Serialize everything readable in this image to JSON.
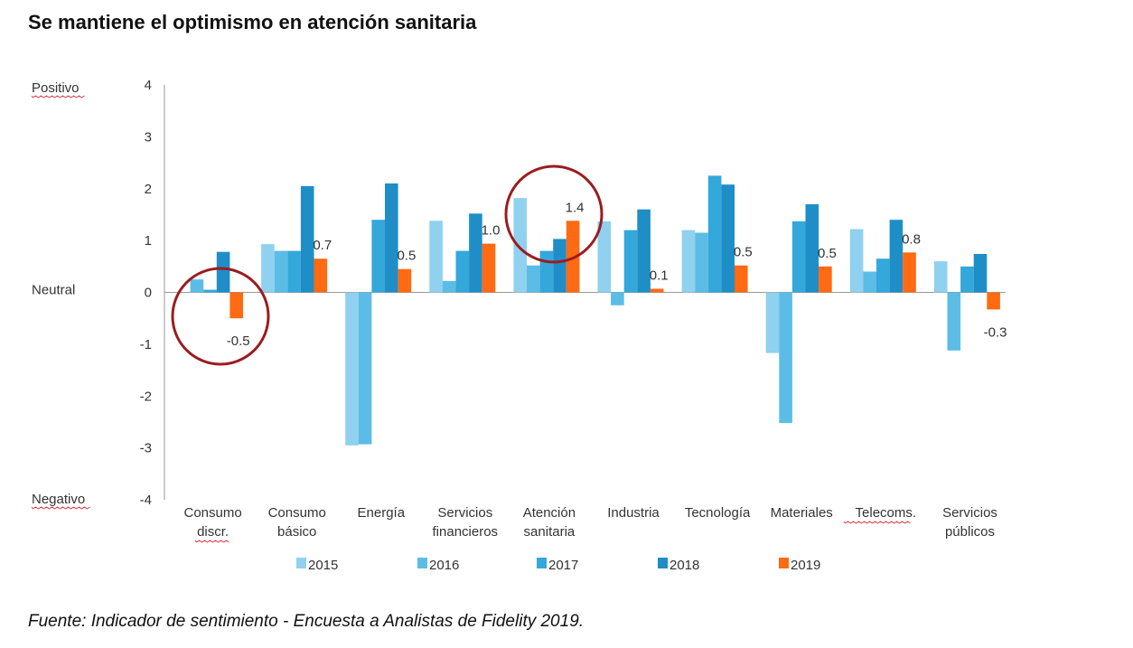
{
  "title": "Se mantiene el optimismo en atención sanitaria",
  "footnote": "Fuente: Indicador de sentimiento - Encuesta a Analistas de Fidelity 2019.",
  "chart_data": {
    "type": "bar",
    "title": "Se mantiene el optimismo en atención sanitaria",
    "xlabel": "",
    "ylabel": "",
    "ylim": [
      -4,
      4
    ],
    "yticks": [
      4,
      3,
      2,
      1,
      0,
      -1,
      -2,
      -3,
      -4
    ],
    "side_labels": {
      "top": "Positivo",
      "middle": "Neutral",
      "bottom": "Negativo"
    },
    "categories": [
      [
        "Consumo",
        "discr."
      ],
      [
        "Consumo",
        "básico"
      ],
      [
        "Energía"
      ],
      [
        "Servicios",
        "financieros"
      ],
      [
        "Atención",
        "sanitaria"
      ],
      [
        "Industria"
      ],
      [
        "Tecnología"
      ],
      [
        "Materiales"
      ],
      [
        "Telecoms."
      ],
      [
        "Servicios",
        "públicos"
      ]
    ],
    "series": [
      {
        "name": "2015",
        "color": "#8fd1ee",
        "values": [
          0,
          0.93,
          -2.95,
          1.38,
          1.82,
          1.37,
          1.2,
          -1.17,
          1.22,
          0.6
        ]
      },
      {
        "name": "2016",
        "color": "#5bbde6",
        "values": [
          0.25,
          0.8,
          -2.93,
          0.22,
          0.52,
          -0.25,
          1.15,
          -2.52,
          0.4,
          -1.12
        ]
      },
      {
        "name": "2017",
        "color": "#34a7db",
        "values": [
          0.05,
          0.8,
          1.4,
          0.8,
          0.8,
          1.2,
          2.25,
          1.37,
          0.65,
          0.5
        ]
      },
      {
        "name": "2018",
        "color": "#1f8ec7",
        "values": [
          0.78,
          2.05,
          2.1,
          1.52,
          1.03,
          1.6,
          2.08,
          1.7,
          1.4,
          0.74
        ]
      },
      {
        "name": "2019",
        "color": "#ff6a13",
        "values": [
          -0.5,
          0.65,
          0.45,
          0.94,
          1.38,
          0.07,
          0.52,
          0.5,
          0.77,
          -0.33
        ]
      }
    ],
    "data_labels_2019": [
      "-0.5",
      "0.7",
      "0.5",
      "1.0",
      "1.4",
      "0.1",
      "0.5",
      "0.5",
      "0.8",
      "-0.3"
    ],
    "highlight_circles": [
      "Consumo discr.",
      "Atención sanitaria"
    ],
    "highlight_color": "#9b1c1f",
    "legend_position": "bottom",
    "grid": false
  }
}
